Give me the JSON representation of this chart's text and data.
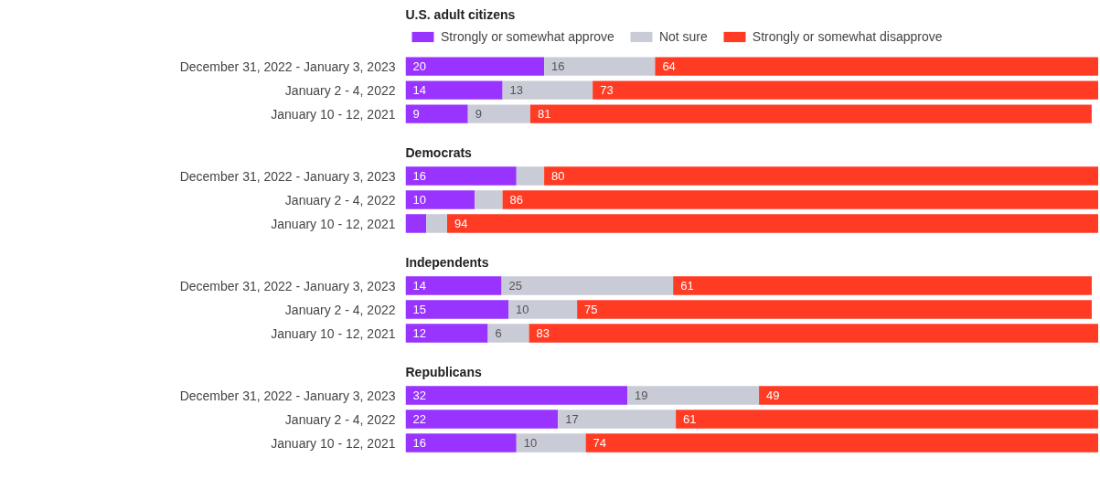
{
  "chart_data": [
    {
      "type": "bar",
      "orientation": "horizontal",
      "stacked": true,
      "title": "U.S. adult citizens",
      "categories": [
        "December 31, 2022 - January 3, 2023",
        "January 2 - 4, 2022",
        "January 10 - 12, 2021"
      ],
      "tick_labels": "y",
      "legend": "top",
      "series": [
        {
          "name": "Strongly or somewhat approve",
          "color": "#9933ff",
          "values": [
            20,
            14,
            9
          ],
          "value_labels": [
            "20",
            "14",
            "9"
          ]
        },
        {
          "name": "Not sure",
          "color": "#c9ccd6",
          "values": [
            16,
            13,
            9
          ],
          "value_labels": [
            "16",
            "13",
            "9"
          ]
        },
        {
          "name": "Strongly or somewhat disapprove",
          "color": "#ff3b24",
          "values": [
            64,
            73,
            81
          ],
          "value_labels": [
            "64",
            "73",
            "81"
          ]
        }
      ]
    },
    {
      "type": "bar",
      "orientation": "horizontal",
      "stacked": true,
      "title": "Democrats",
      "categories": [
        "December 31, 2022 - January 3, 2023",
        "January 2 - 4, 2022",
        "January 10 - 12, 2021"
      ],
      "tick_labels": "y",
      "series": [
        {
          "color": "#9933ff",
          "values": [
            16,
            10,
            3
          ],
          "value_labels": [
            "16",
            "10",
            null
          ]
        },
        {
          "color": "#c9ccd6",
          "values": [
            4,
            4,
            3
          ],
          "value_labels": [
            null,
            null,
            null
          ]
        },
        {
          "color": "#ff3b24",
          "values": [
            80,
            86,
            94
          ],
          "value_labels": [
            "80",
            "86",
            "94"
          ]
        }
      ]
    },
    {
      "type": "bar",
      "orientation": "horizontal",
      "stacked": true,
      "title": "Independents",
      "categories": [
        "December 31, 2022 - January 3, 2023",
        "January 2 - 4, 2022",
        "January 10 - 12, 2021"
      ],
      "tick_labels": "y",
      "series": [
        {
          "color": "#9933ff",
          "values": [
            14,
            15,
            12
          ],
          "value_labels": [
            "14",
            "15",
            "12"
          ]
        },
        {
          "color": "#c9ccd6",
          "values": [
            25,
            10,
            6
          ],
          "value_labels": [
            "25",
            "10",
            "6"
          ]
        },
        {
          "color": "#ff3b24",
          "values": [
            61,
            75,
            83
          ],
          "value_labels": [
            "61",
            "75",
            "83"
          ]
        }
      ]
    },
    {
      "type": "bar",
      "orientation": "horizontal",
      "stacked": true,
      "title": "Republicans",
      "categories": [
        "December 31, 2022 - January 3, 2023",
        "January 2 - 4, 2022",
        "January 10 - 12, 2021"
      ],
      "tick_labels": "y",
      "series": [
        {
          "color": "#9933ff",
          "values": [
            32,
            22,
            16
          ],
          "value_labels": [
            "32",
            "22",
            "16"
          ]
        },
        {
          "color": "#c9ccd6",
          "values": [
            19,
            17,
            10
          ],
          "value_labels": [
            "19",
            "17",
            "10"
          ]
        },
        {
          "color": "#ff3b24",
          "values": [
            49,
            61,
            74
          ],
          "value_labels": [
            "49",
            "61",
            "74"
          ]
        }
      ]
    }
  ]
}
